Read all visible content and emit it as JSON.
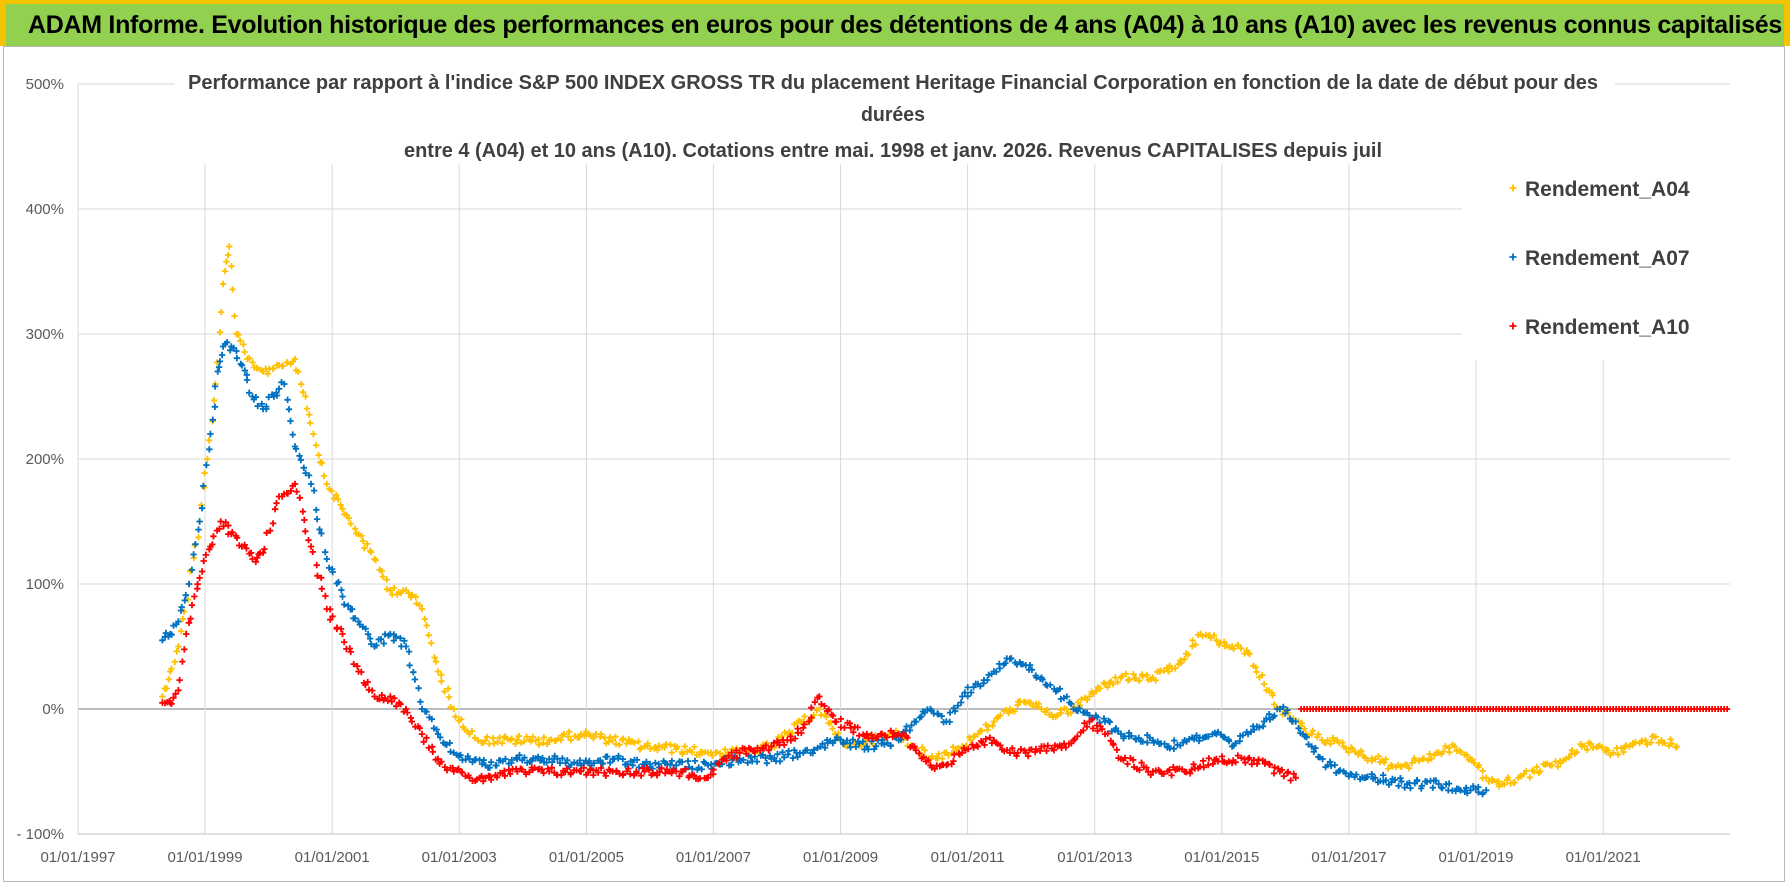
{
  "header": {
    "title": "ADAM Informe. Evolution historique des performances en euros pour des détentions de 4 ans (A04) à 10 ans (A10) avec les revenus connus capitalisés"
  },
  "chart_data": {
    "type": "scatter",
    "title_lines": [
      "Performance par rapport à l'indice S&P 500 INDEX GROSS TR  du placement Heritage Financial Corporation en fonction de la date de début pour des",
      "durées",
      "entre 4 (A04) et 10 ans (A10).  Cotations entre mai. 1998 et janv. 2026.  Revenus CAPITALISES depuis juil"
    ],
    "x_axis": {
      "type": "date",
      "range": [
        "1997-01-01",
        "2022-12-31"
      ],
      "ticks": [
        "1997-01-01",
        "1999-01-01",
        "2001-01-01",
        "2003-01-01",
        "2005-01-01",
        "2007-01-01",
        "2009-01-01",
        "2011-01-01",
        "2013-01-01",
        "2015-01-01",
        "2017-01-01",
        "2019-01-01",
        "2021-01-01"
      ],
      "tick_labels": [
        "01/01/1997",
        "01/01/1999",
        "01/01/2001",
        "01/01/2003",
        "01/01/2005",
        "01/01/2007",
        "01/01/2009",
        "01/01/2011",
        "01/01/2013",
        "01/01/2015",
        "01/01/2017",
        "01/01/2019",
        "01/01/2021"
      ]
    },
    "y_axis": {
      "range": [
        -100,
        500
      ],
      "ticks": [
        -100,
        0,
        100,
        200,
        300,
        400,
        500
      ],
      "tick_labels": [
        "- 100%",
        "0%",
        "100%",
        "200%",
        "300%",
        "400%",
        "500%"
      ]
    },
    "grid": true,
    "legend": {
      "position": "top-right",
      "entries": [
        "Rendement_A04",
        "Rendement_A07",
        "Rendement_A10"
      ]
    },
    "series": [
      {
        "name": "Rendement_A04",
        "color": "#ffc000",
        "points": [
          [
            "1998-05-01",
            10
          ],
          [
            "1998-06-15",
            30
          ],
          [
            "1998-08-01",
            50
          ],
          [
            "1998-10-01",
            100
          ],
          [
            "1998-12-01",
            150
          ],
          [
            "1999-01-15",
            200
          ],
          [
            "1999-03-01",
            260
          ],
          [
            "1999-04-15",
            340
          ],
          [
            "1999-05-20",
            370
          ],
          [
            "1999-07-01",
            300
          ],
          [
            "1999-09-01",
            280
          ],
          [
            "1999-12-01",
            270
          ],
          [
            "2000-03-01",
            275
          ],
          [
            "2000-06-01",
            280
          ],
          [
            "2000-08-01",
            250
          ],
          [
            "2000-09-15",
            220
          ],
          [
            "2000-12-01",
            180
          ],
          [
            "2001-03-01",
            160
          ],
          [
            "2001-06-01",
            140
          ],
          [
            "2001-09-01",
            120
          ],
          [
            "2001-12-01",
            95
          ],
          [
            "2002-03-01",
            95
          ],
          [
            "2002-06-01",
            80
          ],
          [
            "2002-09-01",
            30
          ],
          [
            "2002-12-01",
            0
          ],
          [
            "2003-03-01",
            -20
          ],
          [
            "2003-06-01",
            -25
          ],
          [
            "2003-12-01",
            -25
          ],
          [
            "2004-06-01",
            -25
          ],
          [
            "2004-12-01",
            -20
          ],
          [
            "2005-06-01",
            -25
          ],
          [
            "2005-12-01",
            -30
          ],
          [
            "2006-06-01",
            -32
          ],
          [
            "2006-12-01",
            -35
          ],
          [
            "2007-06-01",
            -35
          ],
          [
            "2007-12-01",
            -30
          ],
          [
            "2008-03-01",
            -20
          ],
          [
            "2008-06-01",
            -10
          ],
          [
            "2008-09-01",
            0
          ],
          [
            "2008-12-01",
            -20
          ],
          [
            "2009-03-01",
            -30
          ],
          [
            "2009-06-01",
            -25
          ],
          [
            "2009-12-01",
            -20
          ],
          [
            "2010-03-01",
            -30
          ],
          [
            "2010-06-01",
            -40
          ],
          [
            "2010-09-01",
            -35
          ],
          [
            "2010-12-01",
            -30
          ],
          [
            "2011-03-01",
            -20
          ],
          [
            "2011-06-01",
            -10
          ],
          [
            "2011-09-01",
            0
          ],
          [
            "2011-12-01",
            5
          ],
          [
            "2012-03-01",
            0
          ],
          [
            "2012-06-01",
            -5
          ],
          [
            "2012-09-01",
            0
          ],
          [
            "2012-12-01",
            10
          ],
          [
            "2013-03-01",
            20
          ],
          [
            "2013-06-01",
            25
          ],
          [
            "2013-12-01",
            25
          ],
          [
            "2014-03-01",
            30
          ],
          [
            "2014-06-01",
            40
          ],
          [
            "2014-09-01",
            60
          ],
          [
            "2014-12-01",
            55
          ],
          [
            "2015-03-01",
            50
          ],
          [
            "2015-06-01",
            45
          ],
          [
            "2015-09-01",
            20
          ],
          [
            "2015-12-01",
            0
          ],
          [
            "2016-03-01",
            -10
          ],
          [
            "2016-06-01",
            -20
          ],
          [
            "2016-09-01",
            -25
          ],
          [
            "2016-12-01",
            -30
          ],
          [
            "2017-03-01",
            -35
          ],
          [
            "2017-06-01",
            -40
          ],
          [
            "2017-09-01",
            -45
          ],
          [
            "2017-12-01",
            -45
          ],
          [
            "2018-03-01",
            -40
          ],
          [
            "2018-06-01",
            -35
          ],
          [
            "2018-09-01",
            -30
          ],
          [
            "2018-12-01",
            -40
          ],
          [
            "2019-03-01",
            -55
          ],
          [
            "2019-06-01",
            -60
          ],
          [
            "2019-09-01",
            -55
          ],
          [
            "2019-12-01",
            -50
          ],
          [
            "2020-03-01",
            -45
          ],
          [
            "2020-06-01",
            -40
          ],
          [
            "2020-09-01",
            -30
          ],
          [
            "2020-12-01",
            -30
          ],
          [
            "2021-03-01",
            -35
          ],
          [
            "2021-06-01",
            -30
          ],
          [
            "2021-09-01",
            -25
          ],
          [
            "2021-12-01",
            -25
          ],
          [
            "2022-03-01",
            -30
          ]
        ]
      },
      {
        "name": "Rendement_A07",
        "color": "#0070c0",
        "points": [
          [
            "1998-05-01",
            55
          ],
          [
            "1998-06-15",
            60
          ],
          [
            "1998-08-01",
            70
          ],
          [
            "1998-10-01",
            100
          ],
          [
            "1998-12-01",
            150
          ],
          [
            "1999-02-01",
            220
          ],
          [
            "1999-03-15",
            270
          ],
          [
            "1999-04-15",
            290
          ],
          [
            "1999-06-01",
            290
          ],
          [
            "1999-08-01",
            275
          ],
          [
            "1999-10-01",
            250
          ],
          [
            "1999-12-01",
            240
          ],
          [
            "2000-02-01",
            250
          ],
          [
            "2000-04-01",
            260
          ],
          [
            "2000-06-01",
            210
          ],
          [
            "2000-09-01",
            180
          ],
          [
            "2000-12-01",
            120
          ],
          [
            "2001-03-01",
            90
          ],
          [
            "2001-06-01",
            70
          ],
          [
            "2001-09-01",
            50
          ],
          [
            "2001-12-01",
            60
          ],
          [
            "2002-03-01",
            50
          ],
          [
            "2002-06-01",
            0
          ],
          [
            "2002-09-01",
            -20
          ],
          [
            "2002-12-01",
            -35
          ],
          [
            "2003-03-01",
            -40
          ],
          [
            "2003-06-01",
            -45
          ],
          [
            "2003-12-01",
            -40
          ],
          [
            "2004-06-01",
            -40
          ],
          [
            "2004-12-01",
            -45
          ],
          [
            "2005-06-01",
            -40
          ],
          [
            "2005-12-01",
            -45
          ],
          [
            "2006-06-01",
            -45
          ],
          [
            "2006-12-01",
            -45
          ],
          [
            "2007-06-01",
            -40
          ],
          [
            "2007-12-01",
            -40
          ],
          [
            "2008-06-01",
            -35
          ],
          [
            "2008-12-01",
            -25
          ],
          [
            "2009-06-01",
            -30
          ],
          [
            "2009-12-01",
            -25
          ],
          [
            "2010-03-01",
            -10
          ],
          [
            "2010-06-01",
            0
          ],
          [
            "2010-09-01",
            -10
          ],
          [
            "2010-12-01",
            10
          ],
          [
            "2011-03-01",
            20
          ],
          [
            "2011-06-01",
            30
          ],
          [
            "2011-09-01",
            40
          ],
          [
            "2011-12-01",
            35
          ],
          [
            "2012-03-01",
            25
          ],
          [
            "2012-06-01",
            15
          ],
          [
            "2012-09-01",
            0
          ],
          [
            "2012-12-01",
            -5
          ],
          [
            "2013-03-01",
            -10
          ],
          [
            "2013-06-01",
            -20
          ],
          [
            "2013-12-01",
            -25
          ],
          [
            "2014-03-01",
            -30
          ],
          [
            "2014-06-01",
            -25
          ],
          [
            "2014-12-01",
            -20
          ],
          [
            "2015-03-01",
            -30
          ],
          [
            "2015-06-01",
            -20
          ],
          [
            "2015-09-01",
            -10
          ],
          [
            "2015-12-01",
            0
          ],
          [
            "2016-03-01",
            -10
          ],
          [
            "2016-06-01",
            -30
          ],
          [
            "2016-09-01",
            -45
          ],
          [
            "2016-12-01",
            -50
          ],
          [
            "2017-06-01",
            -55
          ],
          [
            "2017-12-01",
            -60
          ],
          [
            "2018-06-01",
            -60
          ],
          [
            "2018-12-01",
            -65
          ],
          [
            "2019-03-01",
            -65
          ]
        ]
      },
      {
        "name": "Rendement_A10",
        "color": "#ff0000",
        "points": [
          [
            "1998-05-01",
            5
          ],
          [
            "1998-06-15",
            5
          ],
          [
            "1998-08-01",
            15
          ],
          [
            "1998-09-15",
            60
          ],
          [
            "1998-11-01",
            90
          ],
          [
            "1998-12-15",
            110
          ],
          [
            "1999-02-01",
            130
          ],
          [
            "1999-04-01",
            150
          ],
          [
            "1999-06-01",
            140
          ],
          [
            "1999-08-01",
            130
          ],
          [
            "1999-10-01",
            120
          ],
          [
            "1999-12-01",
            125
          ],
          [
            "2000-03-01",
            170
          ],
          [
            "2000-06-01",
            180
          ],
          [
            "2000-09-01",
            130
          ],
          [
            "2000-12-01",
            80
          ],
          [
            "2001-03-01",
            60
          ],
          [
            "2001-06-01",
            30
          ],
          [
            "2001-09-01",
            10
          ],
          [
            "2001-12-01",
            10
          ],
          [
            "2002-03-01",
            0
          ],
          [
            "2002-06-01",
            -20
          ],
          [
            "2002-09-01",
            -40
          ],
          [
            "2002-12-01",
            -50
          ],
          [
            "2003-03-01",
            -55
          ],
          [
            "2003-06-01",
            -55
          ],
          [
            "2003-12-01",
            -50
          ],
          [
            "2004-06-01",
            -50
          ],
          [
            "2004-12-01",
            -50
          ],
          [
            "2005-06-01",
            -50
          ],
          [
            "2005-12-01",
            -50
          ],
          [
            "2006-06-01",
            -50
          ],
          [
            "2006-12-01",
            -55
          ],
          [
            "2007-03-01",
            -40
          ],
          [
            "2007-06-01",
            -35
          ],
          [
            "2007-12-01",
            -30
          ],
          [
            "2008-03-01",
            -25
          ],
          [
            "2008-06-01",
            -15
          ],
          [
            "2008-09-01",
            10
          ],
          [
            "2008-12-01",
            -10
          ],
          [
            "2009-03-01",
            -15
          ],
          [
            "2009-06-01",
            -20
          ],
          [
            "2009-12-01",
            -20
          ],
          [
            "2010-03-01",
            -30
          ],
          [
            "2010-06-01",
            -45
          ],
          [
            "2010-09-01",
            -45
          ],
          [
            "2010-12-01",
            -35
          ],
          [
            "2011-03-01",
            -30
          ],
          [
            "2011-06-01",
            -25
          ],
          [
            "2011-09-01",
            -35
          ],
          [
            "2011-12-01",
            -35
          ],
          [
            "2012-03-01",
            -30
          ],
          [
            "2012-06-01",
            -30
          ],
          [
            "2012-09-01",
            -25
          ],
          [
            "2012-12-01",
            -10
          ],
          [
            "2013-03-01",
            -20
          ],
          [
            "2013-06-01",
            -40
          ],
          [
            "2013-12-01",
            -50
          ],
          [
            "2014-06-01",
            -50
          ],
          [
            "2014-12-01",
            -40
          ],
          [
            "2015-06-01",
            -40
          ],
          [
            "2015-12-01",
            -50
          ],
          [
            "2016-03-01",
            -55
          ]
        ]
      }
    ],
    "flat_zero_segment": {
      "series": "Rendement_A10",
      "from": "2016-04-01",
      "to": "2022-12-31",
      "value": 0
    }
  }
}
